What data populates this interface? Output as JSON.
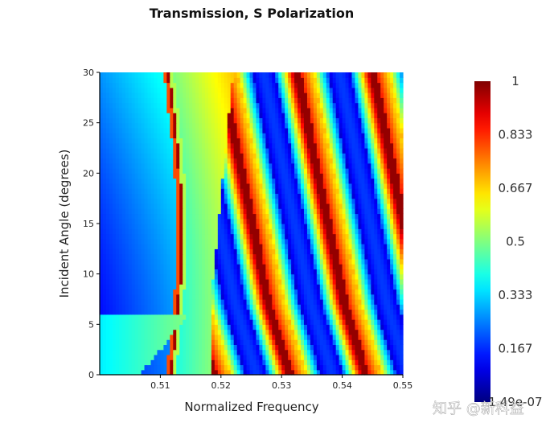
{
  "chart_data": {
    "type": "heatmap",
    "title": "Transmission, S Polarization",
    "xlabel": "Normalized Frequency",
    "ylabel": "Incident Angle (degrees)",
    "xlim": [
      0.5,
      0.55
    ],
    "ylim": [
      0,
      30
    ],
    "x_ticks": [
      "0.51",
      "0.52",
      "0.53",
      "0.54",
      "0.55"
    ],
    "x_tick_values": [
      0.51,
      0.52,
      0.53,
      0.54,
      0.55
    ],
    "y_ticks": [
      "0",
      "5",
      "10",
      "15",
      "20",
      "25",
      "30"
    ],
    "y_tick_values": [
      0,
      5,
      10,
      15,
      20,
      25,
      30
    ],
    "colorscale": "jet",
    "colorbar": {
      "min": 1.49e-07,
      "max": 1,
      "tick_labels": [
        "1",
        "0.833",
        "0.667",
        "0.5",
        "0.333",
        "0.167",
        "1.49e-07"
      ],
      "tick_values": [
        1,
        0.833,
        0.667,
        0.5,
        0.333,
        0.167,
        1.49e-07
      ]
    },
    "grid": false
  },
  "watermark": "知乎 @新科益"
}
